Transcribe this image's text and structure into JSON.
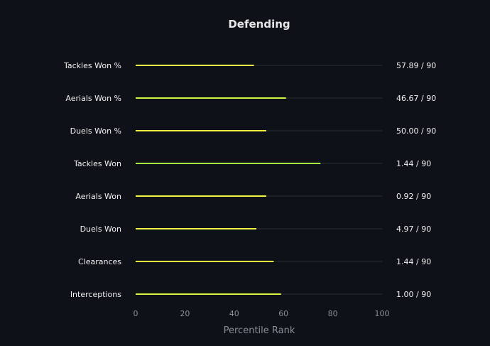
{
  "chart_data": {
    "type": "bar",
    "orientation": "horizontal",
    "style": "lollipop-line",
    "title": "Defending",
    "xlabel": "Percentile Rank",
    "ylabel": "",
    "xlim": [
      0,
      100
    ],
    "xticks": [
      "0",
      "20",
      "40",
      "60",
      "80",
      "100"
    ],
    "grid": false,
    "categories": [
      "Tackles Won %",
      "Aerials Won %",
      "Duels Won %",
      "Tackles Won",
      "Aerials Won",
      "Duels Won",
      "Clearances",
      "Interceptions"
    ],
    "values": [
      48,
      61,
      53,
      75,
      53,
      49,
      56,
      59
    ],
    "value_labels": [
      "57.89 / 90",
      "46.67 / 90",
      "50.00 / 90",
      "1.44 / 90",
      "0.92 / 90",
      "4.97 / 90",
      "1.44 / 90",
      "1.00 / 90"
    ],
    "bar_colors": [
      "#f2f542",
      "#cef542",
      "#f2f542",
      "#a5f542",
      "#f2f542",
      "#f2f542",
      "#e8f542",
      "#d9f542"
    ],
    "track_color": "#2b2f36",
    "background_color": "#0e1117"
  }
}
